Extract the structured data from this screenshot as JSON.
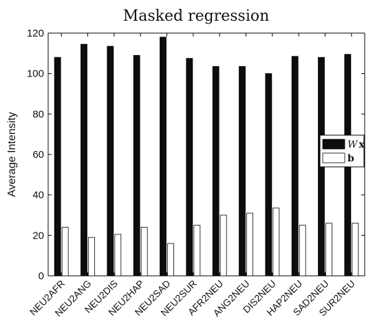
{
  "chart_data": {
    "type": "bar",
    "title": "Masked regression",
    "xlabel": "",
    "ylabel": "Average Intensity",
    "ylim": [
      0,
      120
    ],
    "yticks": [
      "0",
      "20",
      "40",
      "60",
      "80",
      "100",
      "120"
    ],
    "categories": [
      "NEU2AFR",
      "NEU2ANG",
      "NEU2DIS",
      "NEU2HAP",
      "NEU2SAD",
      "NEU2SUR",
      "AFR2NEU",
      "ANG2NEU",
      "DIS2NEU",
      "HAP2NEU",
      "SAD2NEU",
      "SUR2NEU"
    ],
    "series": [
      {
        "name": "Wx",
        "legend_parts": [
          "W",
          "x"
        ],
        "color": "#0d0d0d",
        "values": [
          108,
          114.5,
          113.5,
          109,
          118,
          107.5,
          103.5,
          103.5,
          100,
          108.5,
          108,
          109.5
        ]
      },
      {
        "name": "b",
        "legend_parts": [
          "b"
        ],
        "color": "#ffffff",
        "values": [
          24,
          19,
          20.5,
          24,
          16,
          25,
          30,
          31,
          33.5,
          25,
          26,
          26
        ]
      }
    ],
    "legend_position": "right",
    "grid": false
  }
}
